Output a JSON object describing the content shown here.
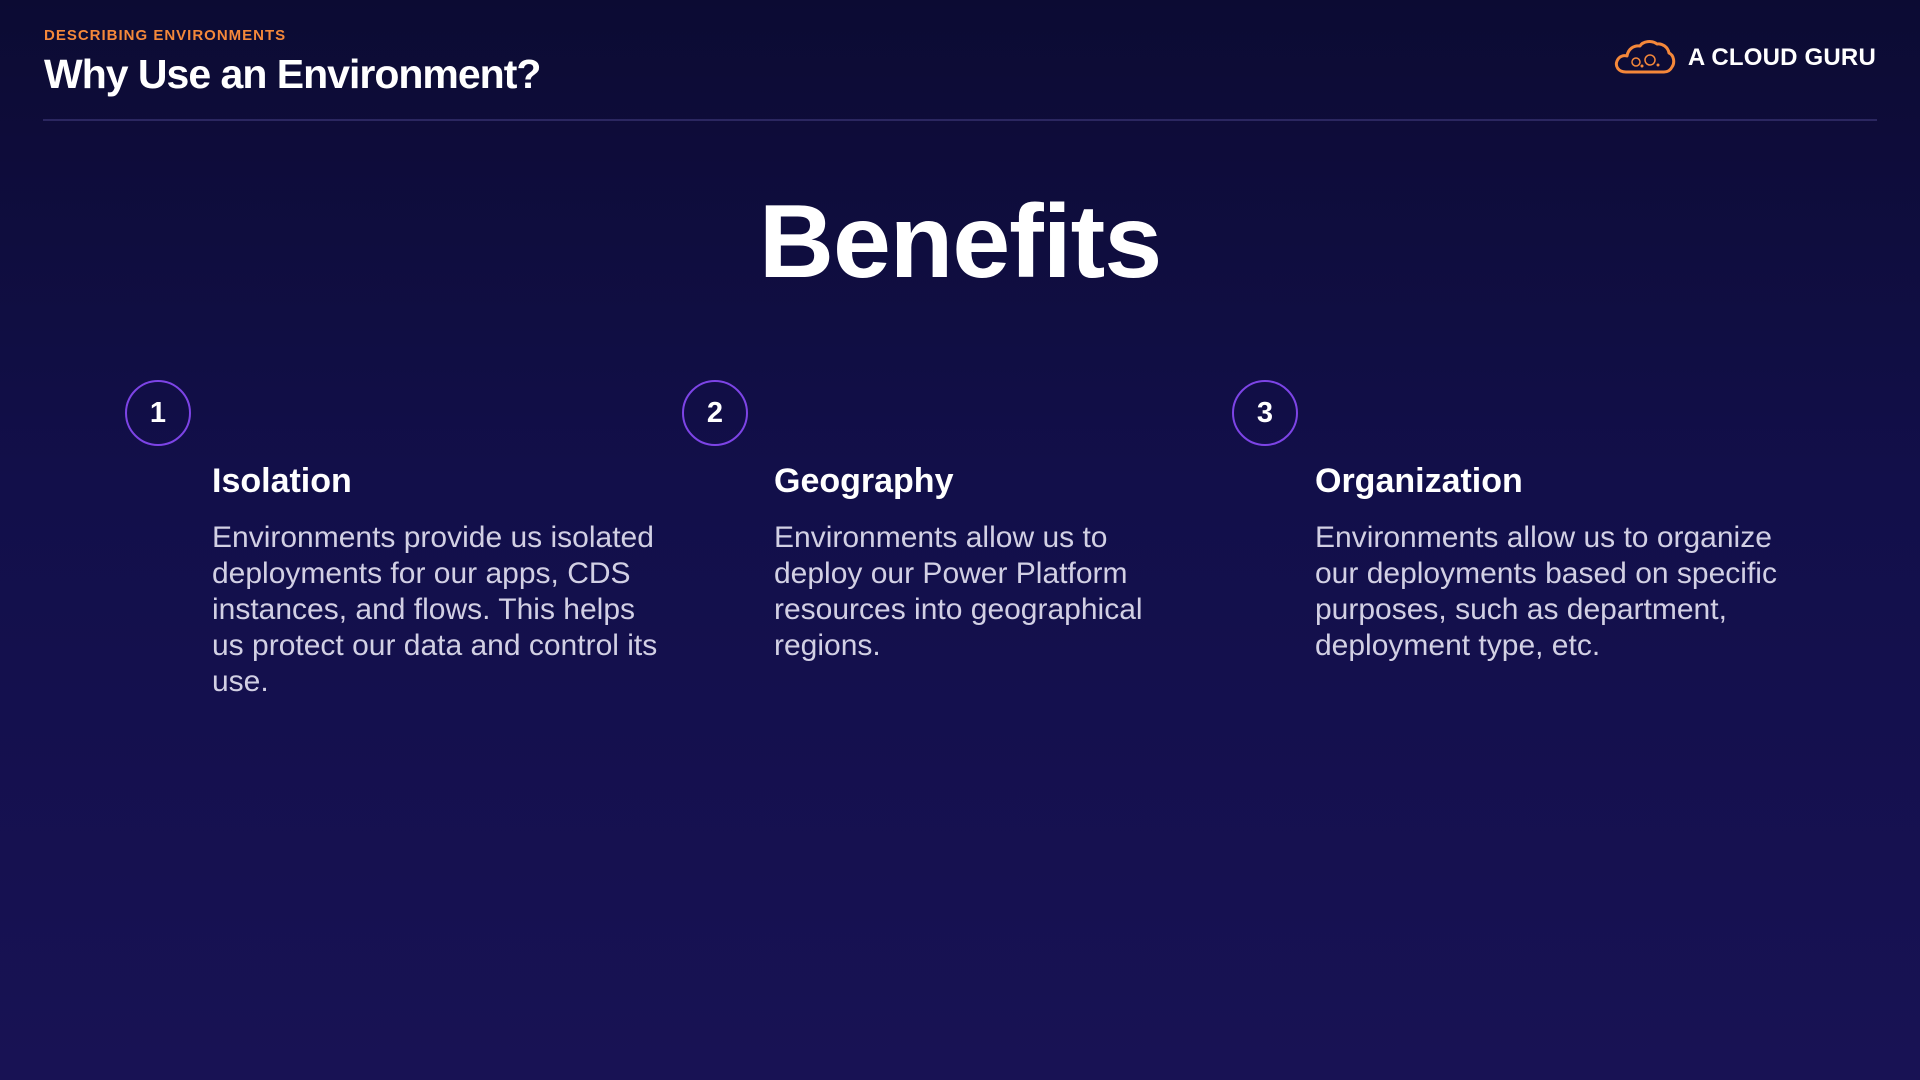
{
  "header": {
    "eyebrow": "DESCRIBING ENVIRONMENTS",
    "title": "Why Use an Environment?"
  },
  "logo": {
    "icon": "cloud-icon",
    "text": "A CLOUD GURU",
    "color": "#f5883a"
  },
  "main_heading": "Benefits",
  "benefits": [
    {
      "number": "1",
      "title": "Isolation",
      "text": "Environments provide us isolated deployments for our apps, CDS instances, and flows. This helps us protect our data and control its use."
    },
    {
      "number": "2",
      "title": "Geography",
      "text": "Environments allow us to deploy our Power Platform resources into geographical regions."
    },
    {
      "number": "3",
      "title": "Organization",
      "text": "Environments allow us to organize our deployments based on specific purposes, such as department, deployment type, etc."
    }
  ],
  "colors": {
    "accent": "#f5883a",
    "circle_border": "#7d44e6",
    "background_top": "#0c0b33",
    "background_bottom": "#181254"
  }
}
